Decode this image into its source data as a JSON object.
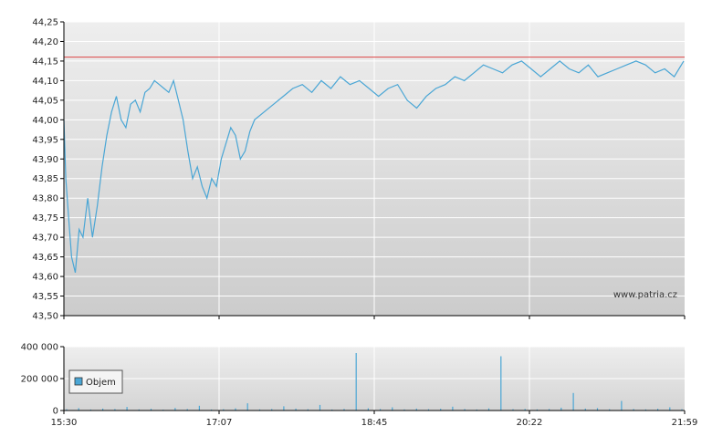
{
  "chart_data": [
    {
      "type": "line",
      "x_ticks": [
        "15:30",
        "17:07",
        "18:45",
        "20:22",
        "21:59"
      ],
      "y_ticks": [
        "44,25",
        "44,20",
        "44,15",
        "44,10",
        "44,05",
        "44,00",
        "43,95",
        "43,90",
        "43,85",
        "43,80",
        "43,75",
        "43,70",
        "43,65",
        "43,60",
        "43,55",
        "43,50"
      ],
      "ylim": [
        43.5,
        44.25
      ],
      "reference_line": 44.16,
      "watermark": "www.patria.cz",
      "grid": true,
      "series": [
        {
          "color": "#4aa6d5",
          "x": [
            0,
            0.02,
            0.05,
            0.08,
            0.12,
            0.16,
            0.2,
            0.25,
            0.3,
            0.35,
            0.4,
            0.45,
            0.5,
            0.55,
            0.6,
            0.65,
            0.7,
            0.75,
            0.8,
            0.85,
            0.9,
            0.95,
            1.0,
            1.05,
            1.1,
            1.15,
            1.2,
            1.25,
            1.3,
            1.35,
            1.4,
            1.45,
            1.5,
            1.55,
            1.6,
            1.65,
            1.7,
            1.75,
            1.8,
            1.85,
            1.9,
            1.95,
            2.0,
            2.1,
            2.2,
            2.3,
            2.4,
            2.5,
            2.6,
            2.7,
            2.8,
            2.9,
            3.0,
            3.1,
            3.2,
            3.3,
            3.4,
            3.5,
            3.6,
            3.7,
            3.8,
            3.9,
            4.0,
            4.1,
            4.2,
            4.3,
            4.4,
            4.5,
            4.6,
            4.7,
            4.8,
            4.9,
            5.0,
            5.1,
            5.2,
            5.3,
            5.4,
            5.5,
            5.6,
            5.7,
            5.8,
            5.9,
            6.0,
            6.1,
            6.2,
            6.3,
            6.4,
            6.5
          ],
          "values": [
            44.0,
            43.85,
            43.75,
            43.65,
            43.61,
            43.72,
            43.7,
            43.8,
            43.7,
            43.78,
            43.88,
            43.96,
            44.02,
            44.06,
            44.0,
            43.98,
            44.04,
            44.05,
            44.02,
            44.07,
            44.08,
            44.1,
            44.09,
            44.08,
            44.07,
            44.1,
            44.05,
            44.0,
            43.92,
            43.85,
            43.88,
            43.83,
            43.8,
            43.85,
            43.83,
            43.9,
            43.94,
            43.98,
            43.96,
            43.9,
            43.92,
            43.97,
            44.0,
            44.02,
            44.04,
            44.06,
            44.08,
            44.09,
            44.07,
            44.1,
            44.08,
            44.11,
            44.09,
            44.1,
            44.08,
            44.06,
            44.08,
            44.09,
            44.05,
            44.03,
            44.06,
            44.08,
            44.09,
            44.11,
            44.1,
            44.12,
            44.14,
            44.13,
            44.12,
            44.14,
            44.15,
            44.13,
            44.11,
            44.13,
            44.15,
            44.13,
            44.12,
            44.14,
            44.11,
            44.12,
            44.13,
            44.14,
            44.15,
            44.14,
            44.12,
            44.13,
            44.11,
            44.15
          ]
        }
      ]
    },
    {
      "type": "bar",
      "x_ticks": [
        "15:30",
        "17:07",
        "18:45",
        "20:22",
        "21:59"
      ],
      "y_ticks": [
        "400 000",
        "200 000",
        "0"
      ],
      "ylim": [
        0,
        400000
      ],
      "legend": "Objem",
      "series": [
        {
          "name": "Objem",
          "color": "#4aa6d5",
          "values": [
            8000,
            15000,
            6000,
            12000,
            9000,
            22000,
            7000,
            11000,
            5000,
            16000,
            9000,
            30000,
            6000,
            8000,
            14000,
            45000,
            7000,
            9000,
            26000,
            12000,
            8000,
            35000,
            6000,
            10000,
            360000,
            14000,
            9000,
            20000,
            7000,
            12000,
            8000,
            11000,
            24000,
            9000,
            6000,
            13000,
            340000,
            8000,
            10000,
            7000,
            9000,
            18000,
            110000,
            12000,
            15000,
            8000,
            60000,
            9000,
            7000,
            11000,
            20000,
            8000
          ]
        }
      ]
    }
  ]
}
